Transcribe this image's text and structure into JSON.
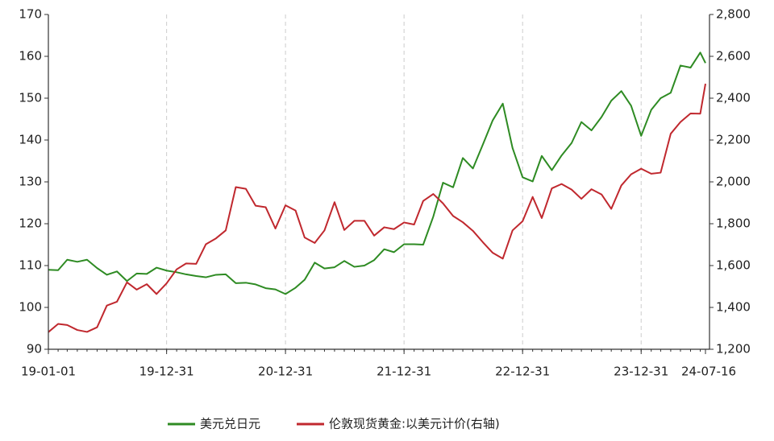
{
  "chart_data": {
    "type": "line",
    "x": [
      "19-01-01",
      "19-01-31",
      "19-02-28",
      "19-03-31",
      "19-04-30",
      "19-05-31",
      "19-06-30",
      "19-07-31",
      "19-08-31",
      "19-09-30",
      "19-10-31",
      "19-11-30",
      "19-12-31",
      "20-01-31",
      "20-02-29",
      "20-03-31",
      "20-04-30",
      "20-05-31",
      "20-06-30",
      "20-07-31",
      "20-08-31",
      "20-09-30",
      "20-10-31",
      "20-11-30",
      "20-12-31",
      "21-01-31",
      "21-02-28",
      "21-03-31",
      "21-04-30",
      "21-05-31",
      "21-06-30",
      "21-07-31",
      "21-08-31",
      "21-09-30",
      "21-10-31",
      "21-11-30",
      "21-12-31",
      "22-01-31",
      "22-02-28",
      "22-03-31",
      "22-04-30",
      "22-05-31",
      "22-06-30",
      "22-07-31",
      "22-08-31",
      "22-09-30",
      "22-10-31",
      "22-11-30",
      "22-12-31",
      "23-01-31",
      "23-02-28",
      "23-03-31",
      "23-04-30",
      "23-05-31",
      "23-06-30",
      "23-07-31",
      "23-08-31",
      "23-09-30",
      "23-10-31",
      "23-11-30",
      "23-12-31",
      "24-01-31",
      "24-02-29",
      "24-03-31",
      "24-04-30",
      "24-05-31",
      "24-06-30",
      "24-07-16"
    ],
    "series": [
      {
        "name": "美元兑日元",
        "color": "#2e8b23",
        "axis": "y",
        "values": [
          109,
          108.9,
          111.4,
          110.9,
          111.4,
          109.4,
          107.8,
          108.6,
          106.3,
          108.1,
          108.0,
          109.5,
          108.8,
          108.4,
          107.9,
          107.5,
          107.2,
          107.8,
          107.9,
          105.8,
          105.9,
          105.5,
          104.6,
          104.3,
          103.2,
          104.7,
          106.6,
          110.7,
          109.3,
          109.6,
          111.1,
          109.7,
          110.0,
          111.3,
          113.9,
          113.2,
          115.1,
          115.1,
          115.0,
          121.7,
          129.8,
          128.7,
          135.7,
          133.2,
          139.0,
          144.7,
          148.7,
          138.1,
          131.1,
          130.1,
          136.2,
          132.8,
          136.3,
          139.3,
          144.3,
          142.3,
          145.5,
          149.4,
          151.7,
          148.2,
          141.0,
          147.2,
          150.0,
          151.3,
          157.8,
          157.3,
          160.9,
          158.4
        ]
      },
      {
        "name": "伦敦现货黄金:以美元计价(右轴)",
        "color": "#c0282e",
        "axis": "y2",
        "values": [
          1282,
          1321,
          1316,
          1292,
          1283,
          1305,
          1409,
          1427,
          1520,
          1485,
          1511,
          1464,
          1515,
          1582,
          1610,
          1608,
          1702,
          1730,
          1768,
          1975,
          1967,
          1886,
          1879,
          1777,
          1888,
          1863,
          1734,
          1708,
          1768,
          1903,
          1770,
          1814,
          1814,
          1743,
          1783,
          1774,
          1806,
          1796,
          1909,
          1942,
          1897,
          1837,
          1807,
          1766,
          1711,
          1661,
          1633,
          1768,
          1812,
          1928,
          1827,
          1969,
          1990,
          1963,
          1919,
          1965,
          1940,
          1871,
          1983,
          2036,
          2063,
          2039,
          2044,
          2230,
          2286,
          2327,
          2326,
          2469
        ]
      }
    ],
    "xlim": [
      "19-01-01",
      "24-07-16"
    ],
    "xticks": [
      "19-01-01",
      "19-12-31",
      "20-12-31",
      "21-12-31",
      "22-12-31",
      "23-12-31",
      "24-07-16"
    ],
    "ylim": [
      90,
      170
    ],
    "yticks": [
      90,
      100,
      110,
      120,
      130,
      140,
      150,
      160,
      170
    ],
    "y2lim": [
      1200,
      2800
    ],
    "y2ticks": [
      {
        "value": 1200,
        "label": "1,200"
      },
      {
        "value": 1400,
        "label": "1,400"
      },
      {
        "value": 1600,
        "label": "1,600"
      },
      {
        "value": 1800,
        "label": "1,800"
      },
      {
        "value": 2000,
        "label": "2,000"
      },
      {
        "value": 2200,
        "label": "2,200"
      },
      {
        "value": 2400,
        "label": "2,400"
      },
      {
        "value": 2600,
        "label": "2,600"
      },
      {
        "value": 2800,
        "label": "2,800"
      }
    ],
    "grid": true,
    "legend": "bottom"
  }
}
